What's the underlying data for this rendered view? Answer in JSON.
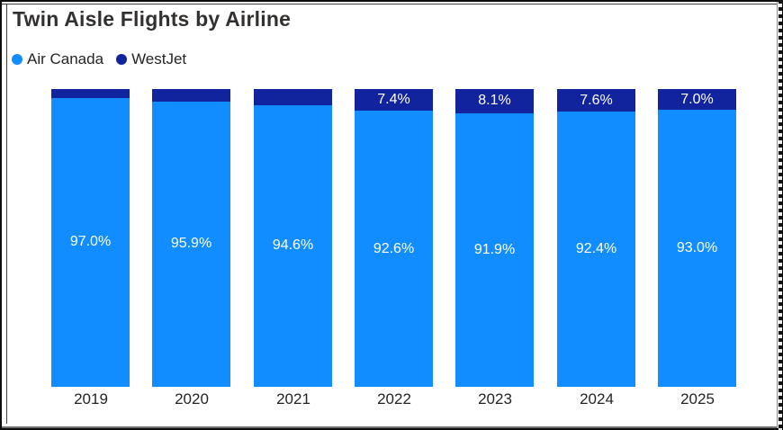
{
  "title": "Twin Aisle Flights by Airline",
  "legend": {
    "items": [
      {
        "label": "Air Canada",
        "color": "#118DFF"
      },
      {
        "label": "WestJet",
        "color": "#12239E"
      }
    ]
  },
  "colors": {
    "air_canada": "#118DFF",
    "westjet": "#12239E",
    "title_text": "#333130",
    "axis_text": "#252423",
    "data_label_text": "#FFFFFF",
    "background": "#FFFFFF",
    "frame": "#0D0D0D"
  },
  "chart_data": {
    "type": "bar",
    "subtype": "stacked-100-percent-column",
    "title": "Twin Aisle Flights by Airline",
    "categories": [
      "2019",
      "2020",
      "2021",
      "2022",
      "2023",
      "2024",
      "2025"
    ],
    "series": [
      {
        "name": "Air Canada",
        "color": "#118DFF",
        "values": [
          97.0,
          95.9,
          94.6,
          92.6,
          91.9,
          92.4,
          93.0
        ],
        "labels": [
          "97.0%",
          "95.9%",
          "94.6%",
          "92.6%",
          "91.9%",
          "92.4%",
          "93.0%"
        ]
      },
      {
        "name": "WestJet",
        "color": "#12239E",
        "values": [
          3.0,
          4.1,
          5.4,
          7.4,
          8.1,
          7.6,
          7.0
        ],
        "labels": [
          "",
          "",
          "",
          "7.4%",
          "8.1%",
          "7.6%",
          "7.0%"
        ]
      }
    ],
    "xlabel": "",
    "ylabel": "",
    "ylim": [
      0,
      100
    ],
    "grid": false,
    "y_axis_visible": false,
    "legend_position": "top-left",
    "data_labels": "inside-center, white"
  }
}
